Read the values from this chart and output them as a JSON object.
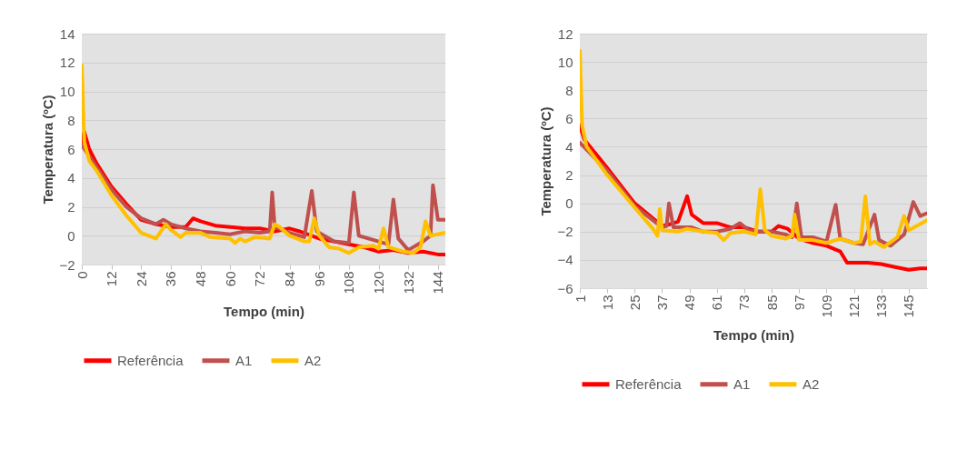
{
  "chart_data": [
    {
      "type": "line",
      "xlabel": "Tempo (min)",
      "ylabel": "Temperatura (ºC)",
      "xlim": [
        0,
        147
      ],
      "xticks": [
        0,
        12,
        24,
        36,
        48,
        60,
        72,
        84,
        96,
        108,
        120,
        132,
        144
      ],
      "ylim": [
        -2,
        14
      ],
      "yticks": [
        -2,
        0,
        2,
        4,
        6,
        8,
        10,
        12,
        14
      ],
      "grid": "y",
      "legend": "bottom",
      "series": [
        {
          "name": "Referência",
          "color": "#ff0000",
          "x": [
            0,
            1,
            3,
            6,
            12,
            18,
            24,
            30,
            36,
            42,
            45,
            48,
            54,
            60,
            66,
            72,
            78,
            84,
            88,
            96,
            102,
            108,
            114,
            120,
            126,
            132,
            138,
            144,
            147
          ],
          "values": [
            6.3,
            7.2,
            6,
            5,
            3.4,
            2.2,
            1.1,
            0.8,
            0.6,
            0.6,
            1.2,
            1,
            0.7,
            0.6,
            0.5,
            0.5,
            0.3,
            0.5,
            0.3,
            -0.2,
            -0.4,
            -0.6,
            -0.8,
            -1.1,
            -1,
            -1.2,
            -1.1,
            -1.3,
            -1.3
          ]
        },
        {
          "name": "A1",
          "color": "#c0504d",
          "x": [
            0,
            3,
            12,
            18,
            24,
            30,
            33,
            36,
            42,
            48,
            54,
            60,
            66,
            72,
            76,
            77,
            78,
            84,
            90,
            93,
            95,
            102,
            108,
            110,
            112,
            120,
            124,
            126,
            128,
            132,
            138,
            141,
            142,
            144,
            147
          ],
          "values": [
            6.3,
            5.5,
            3.2,
            2,
            1.2,
            0.8,
            1.1,
            0.8,
            0.5,
            0.3,
            0.2,
            0.1,
            0.3,
            0.2,
            0.3,
            3,
            0.6,
            0.2,
            -0.1,
            3.1,
            0.3,
            -0.4,
            -0.5,
            3,
            0,
            -0.4,
            -0.6,
            2.5,
            -0.2,
            -1,
            -0.4,
            0,
            3.5,
            1.1,
            1.1
          ]
        },
        {
          "name": "A2",
          "color": "#ffc000",
          "x": [
            0,
            1,
            3,
            6,
            12,
            18,
            24,
            30,
            34,
            36,
            40,
            42,
            48,
            52,
            60,
            62,
            64,
            66,
            70,
            76,
            78,
            80,
            84,
            90,
            92,
            94,
            96,
            100,
            104,
            108,
            112,
            118,
            120,
            122,
            124,
            130,
            134,
            137,
            139,
            141,
            147
          ],
          "values": [
            11.8,
            6.5,
            5.2,
            4.5,
            2.8,
            1.4,
            0.2,
            -0.2,
            0.8,
            0.4,
            -0.1,
            0.2,
            0.2,
            -0.1,
            -0.2,
            -0.5,
            -0.2,
            -0.4,
            -0.1,
            -0.2,
            0.8,
            0.6,
            0,
            -0.4,
            -0.4,
            1.2,
            0,
            -0.8,
            -0.9,
            -1.2,
            -0.8,
            -0.7,
            -0.9,
            0.5,
            -0.8,
            -1.1,
            -1.2,
            -0.8,
            1,
            0,
            0.2
          ]
        }
      ]
    },
    {
      "type": "line",
      "xlabel": "Tempo (min)",
      "ylabel": "Temperatura (ºC)",
      "xlim": [
        1,
        153
      ],
      "xticks": [
        1,
        13,
        25,
        37,
        49,
        61,
        73,
        85,
        97,
        109,
        121,
        133,
        145
      ],
      "ylim": [
        -6,
        12
      ],
      "yticks": [
        -6,
        -4,
        -2,
        0,
        2,
        4,
        6,
        8,
        10,
        12
      ],
      "grid": "y",
      "legend": "bottom",
      "series": [
        {
          "name": "Referência",
          "color": "#ff0000",
          "x": [
            1,
            3,
            13,
            25,
            37,
            40,
            44,
            48,
            50,
            55,
            61,
            67,
            73,
            79,
            85,
            88,
            92,
            97,
            103,
            109,
            115,
            118,
            121,
            127,
            133,
            139,
            145,
            150,
            153
          ],
          "values": [
            5.5,
            4.5,
            2.5,
            0,
            -1.6,
            -1.5,
            -1.3,
            0.5,
            -0.8,
            -1.4,
            -1.4,
            -1.7,
            -1.7,
            -2,
            -2,
            -1.6,
            -1.8,
            -2.5,
            -2.8,
            -3,
            -3.4,
            -4.2,
            -4.2,
            -4.2,
            -4.3,
            -4.5,
            -4.7,
            -4.6,
            -4.6
          ]
        },
        {
          "name": "A1",
          "color": "#c0504d",
          "x": [
            1,
            13,
            25,
            37,
            39,
            40,
            42,
            50,
            55,
            61,
            67,
            71,
            75,
            79,
            85,
            91,
            94,
            96,
            98,
            103,
            109,
            113,
            115,
            121,
            125,
            130,
            132,
            137,
            143,
            147,
            150,
            153
          ],
          "values": [
            4.3,
            2.3,
            -0.2,
            -1.7,
            -1.6,
            0,
            -1.7,
            -1.7,
            -2,
            -2,
            -1.8,
            -1.4,
            -1.9,
            -2,
            -2,
            -2.2,
            -2.4,
            0,
            -2.4,
            -2.4,
            -2.7,
            -0.1,
            -2.5,
            -2.8,
            -2.9,
            -0.8,
            -2.6,
            -3,
            -2.2,
            0.1,
            -0.9,
            -0.7
          ]
        },
        {
          "name": "A2",
          "color": "#ffc000",
          "x": [
            1,
            2,
            4,
            13,
            25,
            33,
            35,
            36,
            37,
            44,
            48,
            55,
            61,
            64,
            67,
            73,
            78,
            80,
            82,
            85,
            91,
            94,
            95,
            97,
            103,
            109,
            115,
            121,
            124,
            126,
            128,
            130,
            134,
            140,
            143,
            145,
            153
          ],
          "values": [
            10.8,
            5.5,
            4,
            2,
            -0.3,
            -1.8,
            -2.3,
            -0.4,
            -1.9,
            -2,
            -1.8,
            -2,
            -2.1,
            -2.6,
            -2.1,
            -2,
            -2.2,
            1,
            -1.9,
            -2.3,
            -2.5,
            -2.3,
            -0.8,
            -2.6,
            -2.6,
            -2.8,
            -2.5,
            -2.8,
            -2.7,
            0.5,
            -2.9,
            -2.7,
            -3.1,
            -2.4,
            -0.9,
            -1.9,
            -1.2
          ]
        }
      ]
    }
  ]
}
